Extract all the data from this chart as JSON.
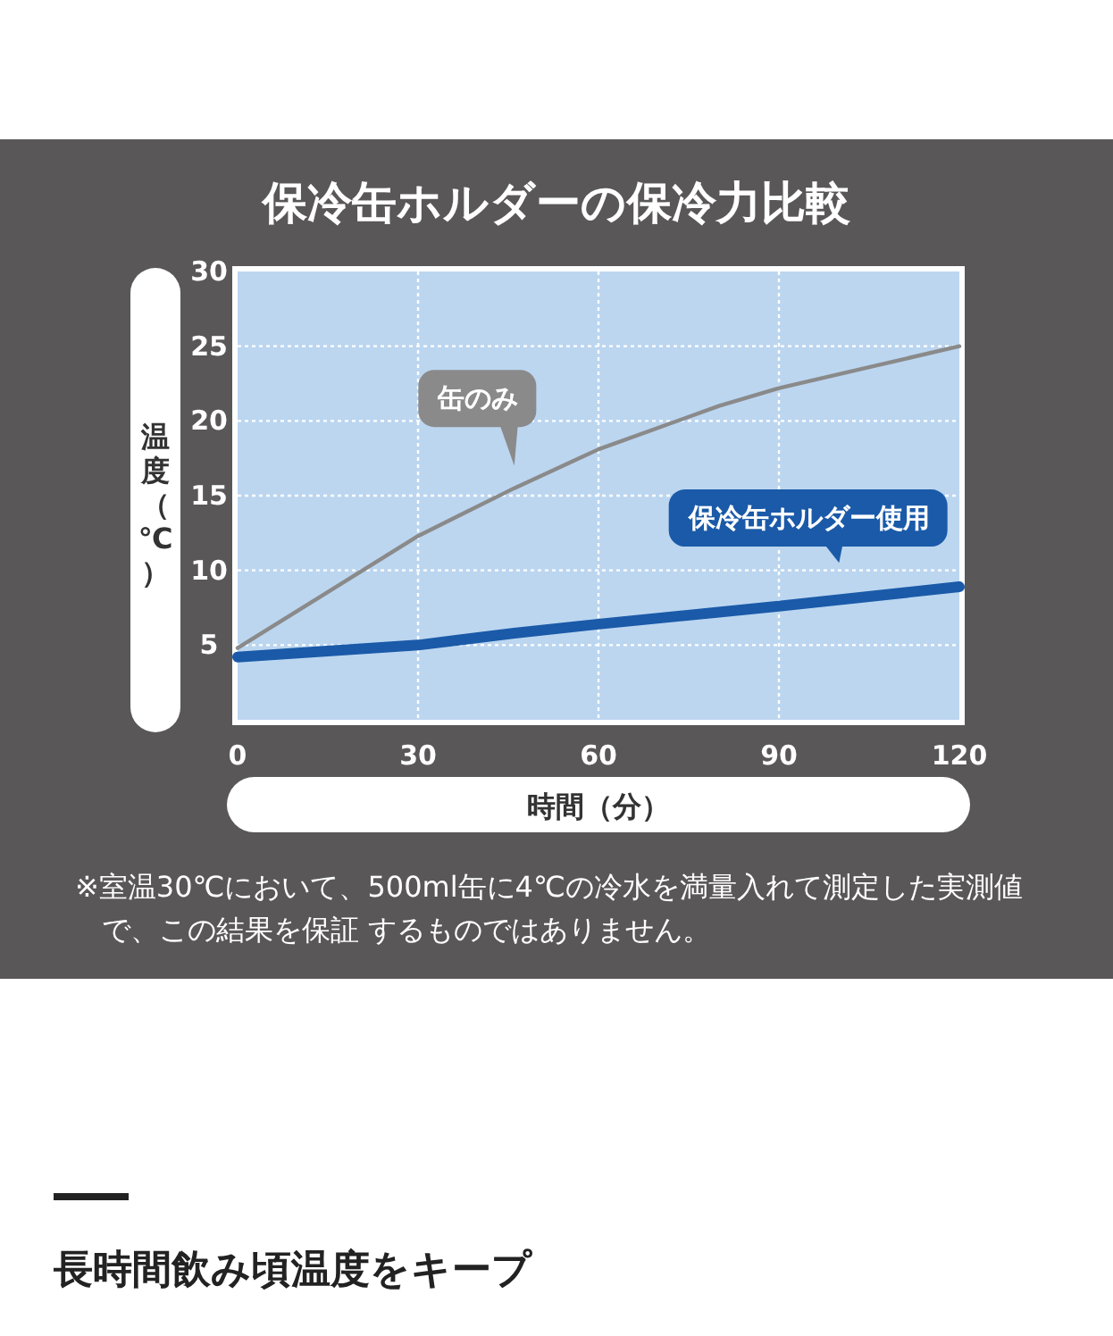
{
  "chart_data": {
    "type": "line",
    "title": "保冷缶ホルダーの保冷力比較",
    "xlabel": "時間（分）",
    "ylabel": "温度（℃）",
    "xlim": [
      0,
      120
    ],
    "ylim": [
      0,
      30
    ],
    "xticks": [
      0,
      30,
      60,
      90,
      120
    ],
    "yticks": [
      {
        "value": 0,
        "label": null
      },
      5,
      10,
      15,
      20,
      25,
      30
    ],
    "grid": true,
    "series": [
      {
        "name": "缶のみ",
        "color": "#8a8a8a",
        "x": [
          0,
          14,
          30,
          46,
          60,
          80,
          90,
          105,
          120
        ],
        "values": [
          4.8,
          8.3,
          12.3,
          15.5,
          18.1,
          21,
          22.2,
          23.6,
          25
        ]
      },
      {
        "name": "保冷缶ホルダー使用",
        "color": "#1a5aa8",
        "x": [
          0,
          30,
          46,
          60,
          80,
          90,
          120
        ],
        "values": [
          4.2,
          5,
          5.8,
          6.4,
          7.2,
          7.6,
          8.9
        ]
      }
    ],
    "annotations": [
      "※室温30℃において、500ml缶に4℃の冷水を満量入れて測定した実測値で、この結果を保証 するものではありません。",
      "長時間飲み頃温度をキープ"
    ]
  }
}
